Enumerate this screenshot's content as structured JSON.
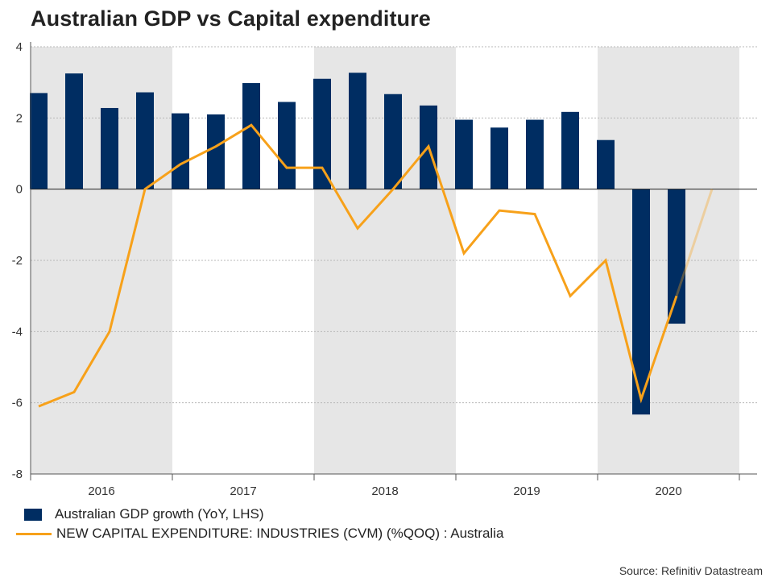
{
  "chart_data": {
    "type": "bar+line",
    "title": "Australian GDP vs Capital expenditure",
    "ylim": [
      -8,
      4
    ],
    "yticks": [
      4,
      2,
      0,
      -2,
      -4,
      -6,
      -8
    ],
    "years": [
      "2016",
      "2017",
      "2018",
      "2019",
      "2020"
    ],
    "shaded_years": [
      "2016",
      "2018",
      "2020"
    ],
    "grid": "horizontal dotted",
    "series": [
      {
        "name": "Australian GDP growth (YoY, LHS)",
        "type": "bar",
        "color": "#002d62",
        "values": [
          2.7,
          3.25,
          2.28,
          2.72,
          2.13,
          2.1,
          2.98,
          2.45,
          3.1,
          3.27,
          2.67,
          2.35,
          1.95,
          1.73,
          1.95,
          2.17,
          1.38,
          -6.33,
          -3.78
        ]
      },
      {
        "name": "NEW CAPITAL EXPENDITURE: INDUSTRIES (CVM) (%QOQ) : Australia",
        "type": "line",
        "color": "#f7a11a",
        "values": [
          -6.1,
          -5.7,
          -4.0,
          0.0,
          0.7,
          1.2,
          1.8,
          0.6,
          0.6,
          -1.1,
          0.0,
          1.2,
          -1.8,
          -0.6,
          -0.7,
          -3.0,
          -2.0,
          -5.9,
          -3.0,
          0.0
        ]
      }
    ]
  },
  "title": "Australian GDP vs Capital expenditure",
  "legend": {
    "gdp_label": "Australian GDP growth (YoY, LHS)",
    "capex_label": "NEW CAPITAL EXPENDITURE: INDUSTRIES (CVM) (%QOQ) : Australia"
  },
  "source": "Source: Refinitiv Datastream",
  "colors": {
    "bar": "#002d62",
    "line": "#f7a11a",
    "shade": "#e6e6e6"
  }
}
